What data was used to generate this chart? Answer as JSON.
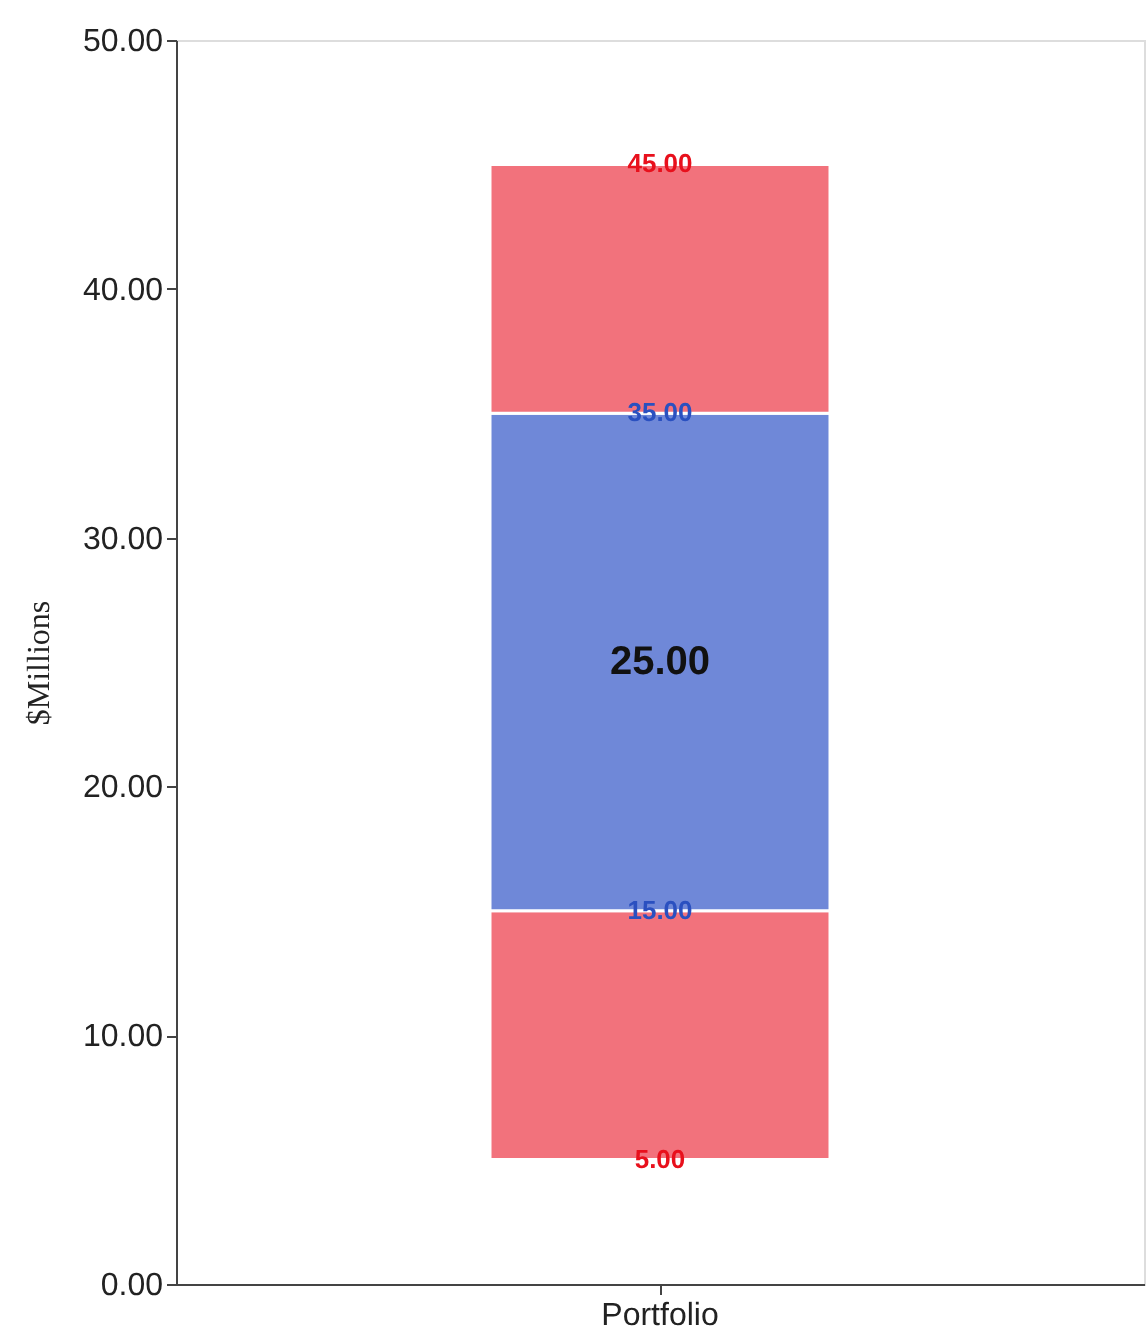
{
  "chart_data": {
    "type": "bar",
    "ylabel": "$Millions",
    "categories": [
      "Portfolio"
    ],
    "series": [
      {
        "color": "#f2727c",
        "values": [
          10
        ],
        "base": [
          5
        ]
      },
      {
        "color": "#6f88d8",
        "values": [
          20
        ],
        "base": [
          15
        ]
      },
      {
        "color": "#f2727c",
        "values": [
          10
        ],
        "base": [
          35
        ]
      }
    ],
    "ylim": [
      0,
      50
    ],
    "yticks": [
      {
        "value": 0,
        "label": "0.00"
      },
      {
        "value": 10,
        "label": "10.00"
      },
      {
        "value": 20,
        "label": "20.00"
      },
      {
        "value": 30,
        "label": "30.00"
      },
      {
        "value": 40,
        "label": "40.00"
      },
      {
        "value": 50,
        "label": "50.00"
      }
    ],
    "grid": false,
    "annotations": [
      {
        "text": "5.00",
        "x": "Portfolio",
        "y": 5
      },
      {
        "text": "15.00",
        "x": "Portfolio",
        "y": 15
      },
      "25.00",
      {
        "text": "35.00",
        "x": "Portfolio",
        "y": 35
      },
      {
        "text": "45.00",
        "x": "Portfolio",
        "y": 45
      }
    ]
  }
}
